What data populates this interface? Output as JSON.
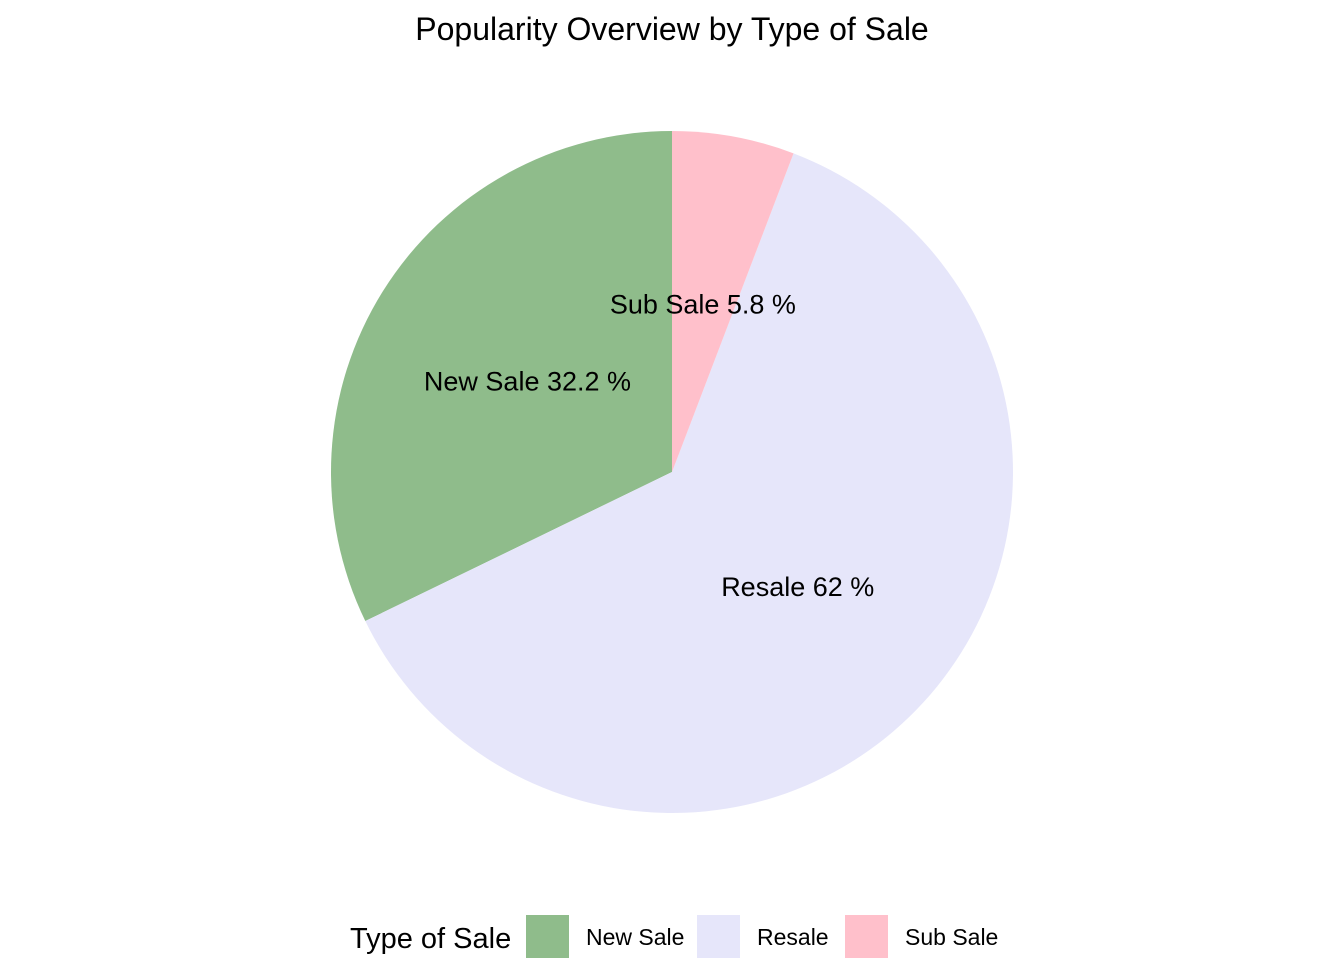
{
  "chart_data": {
    "type": "pie",
    "title": "Popularity Overview by Type of Sale",
    "categories": [
      "New Sale",
      "Resale",
      "Sub Sale"
    ],
    "values": [
      32.2,
      62,
      5.8
    ],
    "unit": "%",
    "slice_labels": [
      "New Sale 32.2 %",
      "Resale 62 %",
      "Sub Sale 5.8 %"
    ],
    "colors": [
      "#8FBC8B",
      "#E6E6FA",
      "#FFC0CB"
    ],
    "start_angle_deg": 0,
    "direction": "counterclockwise",
    "legend": {
      "title": "Type of Sale",
      "position": "bottom",
      "items": [
        "New Sale",
        "Resale",
        "Sub Sale"
      ]
    }
  }
}
